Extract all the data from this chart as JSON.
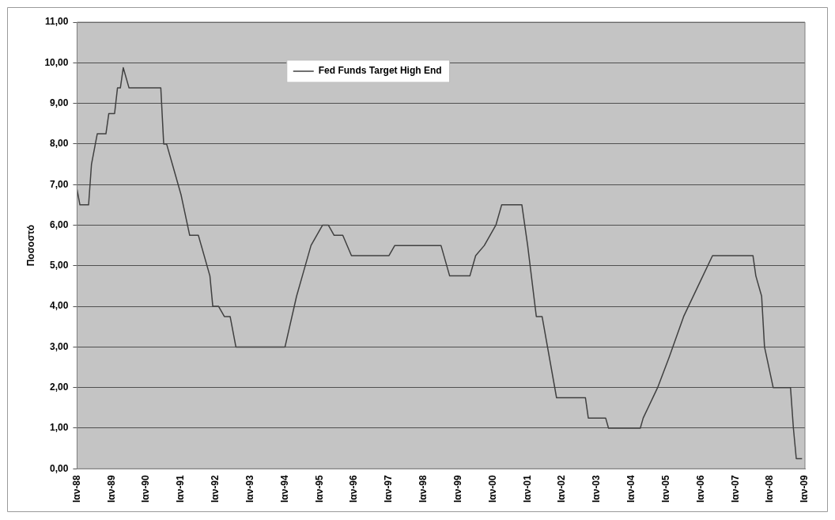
{
  "chart_data": {
    "type": "line",
    "ylabel": "Ποσοστό",
    "legend": "top",
    "grid": "y",
    "marker": "none",
    "line_style": "solid",
    "xlim": [
      "1988-01",
      "2009-01"
    ],
    "xticks": [
      {
        "value": "1988-01",
        "label": "Ιαν-88"
      },
      {
        "value": "1989-01",
        "label": "Ιαν-89"
      },
      {
        "value": "1990-01",
        "label": "Ιαν-90"
      },
      {
        "value": "1991-01",
        "label": "Ιαν-91"
      },
      {
        "value": "1992-01",
        "label": "Ιαν-92"
      },
      {
        "value": "1993-01",
        "label": "Ιαν-93"
      },
      {
        "value": "1994-01",
        "label": "Ιαν-94"
      },
      {
        "value": "1995-01",
        "label": "Ιαν-95"
      },
      {
        "value": "1996-01",
        "label": "Ιαν-96"
      },
      {
        "value": "1997-01",
        "label": "Ιαν-97"
      },
      {
        "value": "1998-01",
        "label": "Ιαν-98"
      },
      {
        "value": "1999-01",
        "label": "Ιαν-99"
      },
      {
        "value": "2000-01",
        "label": "Ιαν-00"
      },
      {
        "value": "2001-01",
        "label": "Ιαν-01"
      },
      {
        "value": "2002-01",
        "label": "Ιαν-02"
      },
      {
        "value": "2003-01",
        "label": "Ιαν-03"
      },
      {
        "value": "2004-01",
        "label": "Ιαν-04"
      },
      {
        "value": "2005-01",
        "label": "Ιαν-05"
      },
      {
        "value": "2006-01",
        "label": "Ιαν-06"
      },
      {
        "value": "2007-01",
        "label": "Ιαν-07"
      },
      {
        "value": "2008-01",
        "label": "Ιαν-08"
      },
      {
        "value": "2009-01",
        "label": "Ιαν-09"
      }
    ],
    "ylim": [
      0,
      11
    ],
    "yticks": [
      {
        "value": 0,
        "label": "0,00"
      },
      {
        "value": 1,
        "label": "1,00"
      },
      {
        "value": 2,
        "label": "2,00"
      },
      {
        "value": 3,
        "label": "3,00"
      },
      {
        "value": 4,
        "label": "4,00"
      },
      {
        "value": 5,
        "label": "5,00"
      },
      {
        "value": 6,
        "label": "6,00"
      },
      {
        "value": 7,
        "label": "7,00"
      },
      {
        "value": 8,
        "label": "8,00"
      },
      {
        "value": 9,
        "label": "9,00"
      },
      {
        "value": 10,
        "label": "10,00"
      },
      {
        "value": 11,
        "label": "11,00"
      }
    ],
    "series": [
      {
        "name": "Fed Funds Target High End",
        "color": "#404040",
        "x": [
          "1988-01",
          "1988-02",
          "1988-05",
          "1988-06",
          "1988-08",
          "1988-11",
          "1988-12",
          "1989-02",
          "1989-03",
          "1989-04",
          "1989-05",
          "1989-07",
          "1990-06",
          "1990-07",
          "1990-08",
          "1990-10",
          "1991-01",
          "1991-04",
          "1991-07",
          "1991-11",
          "1991-12",
          "1992-02",
          "1992-04",
          "1992-06",
          "1992-08",
          "1994-01",
          "1994-05",
          "1994-07",
          "1994-10",
          "1995-02",
          "1995-04",
          "1995-06",
          "1995-09",
          "1995-12",
          "1997-01",
          "1997-03",
          "1998-07",
          "1998-10",
          "1999-05",
          "1999-07",
          "1999-10",
          "2000-02",
          "2000-04",
          "2000-11",
          "2001-01",
          "2001-04",
          "2001-06",
          "2001-11",
          "2002-09",
          "2002-10",
          "2003-04",
          "2003-05",
          "2004-04",
          "2004-05",
          "2004-10",
          "2005-02",
          "2005-07",
          "2005-12",
          "2006-05",
          "2007-07",
          "2007-08",
          "2007-10",
          "2007-11",
          "2008-02",
          "2008-08",
          "2008-09",
          "2008-10",
          "2008-12"
        ],
        "values": [
          6.88,
          6.5,
          6.5,
          7.5,
          8.25,
          8.25,
          8.75,
          8.75,
          9.38,
          9.38,
          9.88,
          9.38,
          9.38,
          8,
          8,
          7.5,
          6.75,
          5.75,
          5.75,
          4.75,
          4,
          4,
          3.75,
          3.75,
          3,
          3,
          4.25,
          4.75,
          5.5,
          6,
          6,
          5.75,
          5.75,
          5.25,
          5.25,
          5.5,
          5.5,
          4.75,
          4.75,
          5.25,
          5.5,
          6,
          6.5,
          6.5,
          5.5,
          3.75,
          3.75,
          1.75,
          1.75,
          1.25,
          1.25,
          1,
          1,
          1.25,
          2,
          2.75,
          3.75,
          4.5,
          5.25,
          5.25,
          4.75,
          4.25,
          3,
          2,
          2,
          1,
          0.25,
          0.25
        ]
      }
    ]
  }
}
